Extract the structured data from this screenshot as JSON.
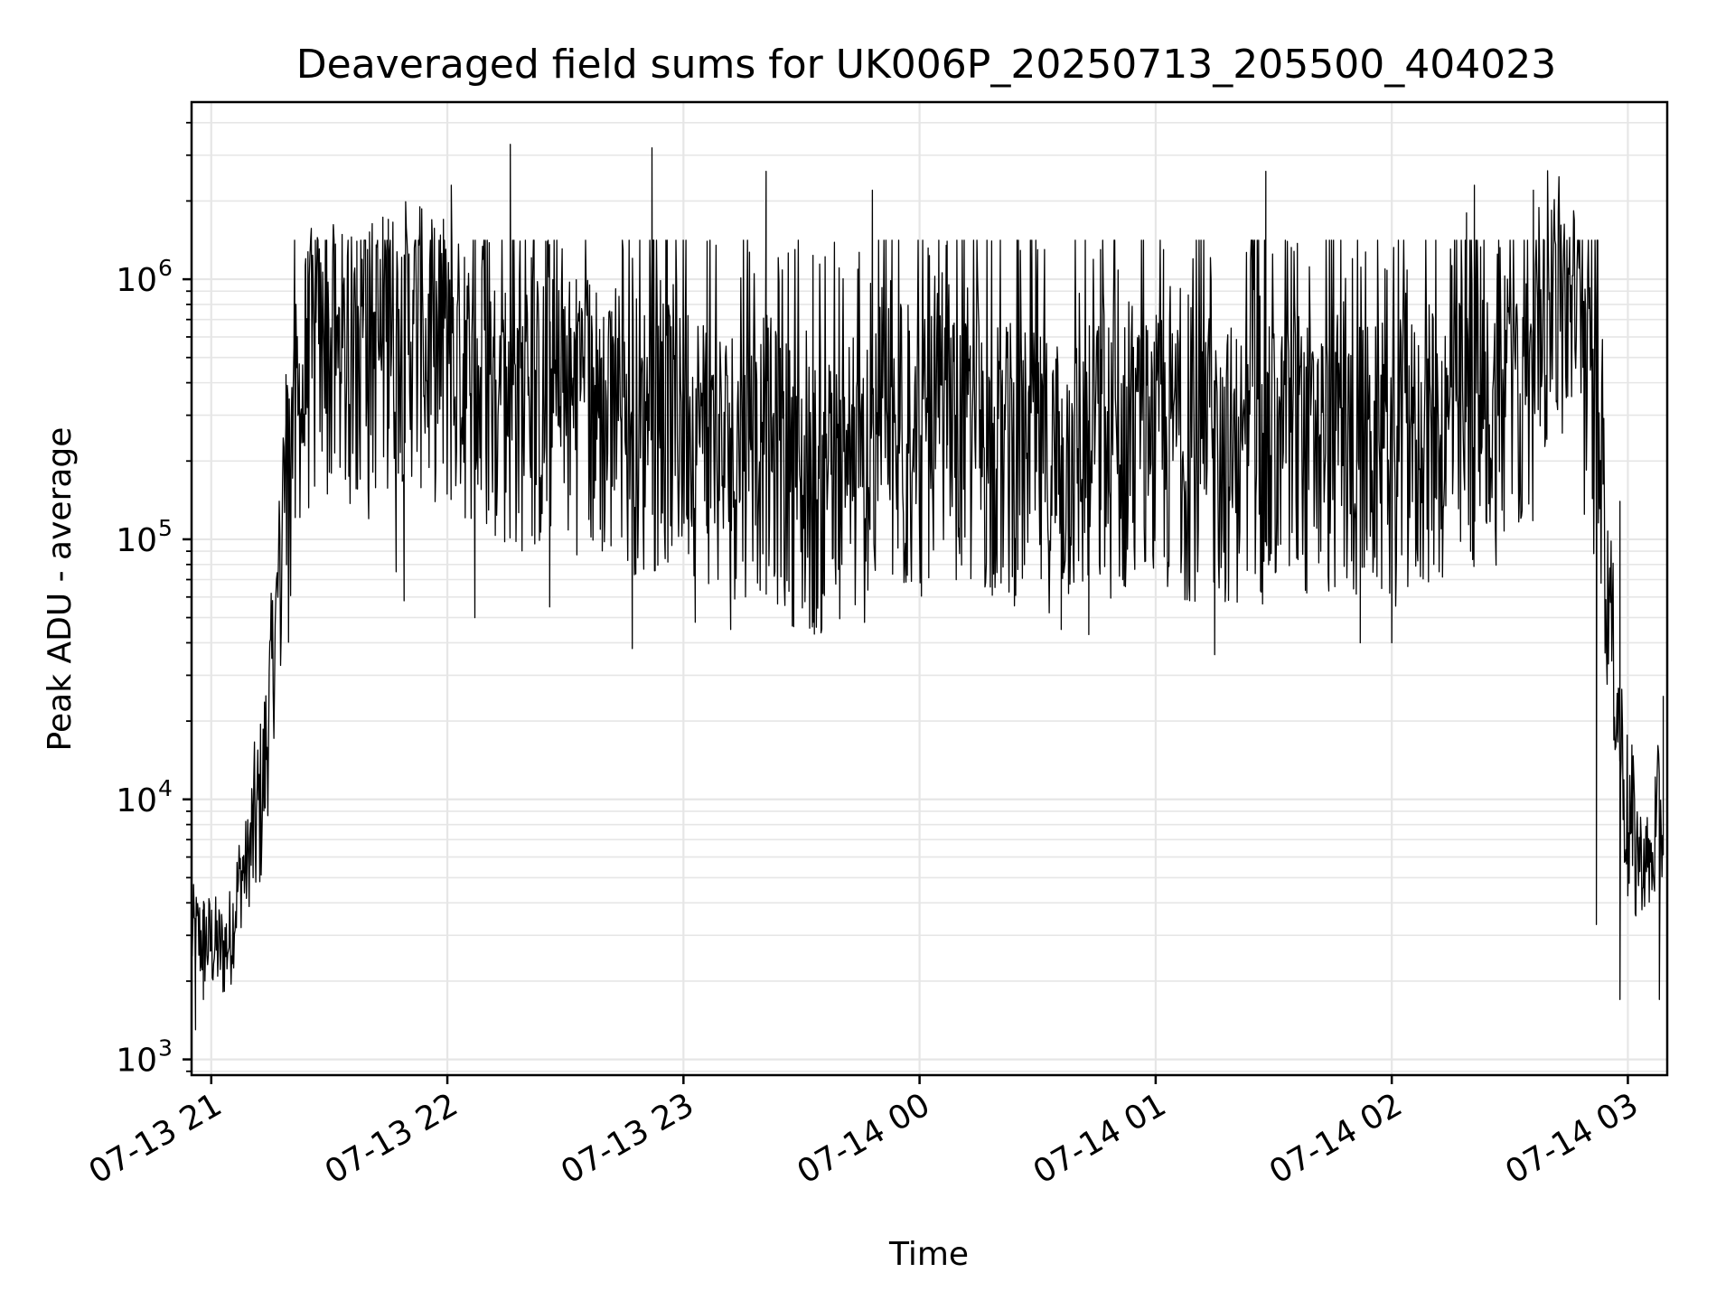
{
  "chart_data": {
    "type": "line",
    "title": "Deaveraged field sums for UK006P_20250713_205500_404023",
    "xlabel": "Time",
    "ylabel": "Peak ADU - average",
    "yscale": "log",
    "grid": true,
    "x_tick_labels": [
      "07-13 21",
      "07-13 22",
      "07-13 23",
      "07-14 00",
      "07-14 01",
      "07-14 02",
      "07-14 03"
    ],
    "x_ticks": [
      "2025-07-13 21:00",
      "2025-07-13 22:00",
      "2025-07-13 23:00",
      "2025-07-14 00:00",
      "2025-07-14 01:00",
      "2025-07-14 02:00",
      "2025-07-14 03:00"
    ],
    "xlim": [
      "2025-07-13 20:55",
      "2025-07-14 03:10"
    ],
    "y_tick_labels": [
      {
        "base": "10",
        "exp": "3"
      },
      {
        "base": "10",
        "exp": "4"
      },
      {
        "base": "10",
        "exp": "5"
      },
      {
        "base": "10",
        "exp": "6"
      }
    ],
    "y_ticks": [
      1000,
      10000,
      100000,
      1000000
    ],
    "ylim": [
      870,
      4800000
    ],
    "line_color": "#000000",
    "series": [
      {
        "x": [
          "2025-07-13 20:55",
          "2025-07-13 21:00",
          "2025-07-13 21:03",
          "2025-07-13 21:05",
          "2025-07-13 21:07",
          "2025-07-13 21:09",
          "2025-07-13 21:11",
          "2025-07-13 21:13",
          "2025-07-13 21:15",
          "2025-07-13 21:18",
          "2025-07-13 21:20",
          "2025-07-13 21:22",
          "2025-07-13 21:25",
          "2025-07-13 21:30",
          "2025-07-13 21:35",
          "2025-07-13 21:40",
          "2025-07-13 21:45",
          "2025-07-13 21:50",
          "2025-07-13 21:55",
          "2025-07-13 22:00",
          "2025-07-13 22:10",
          "2025-07-13 22:20",
          "2025-07-13 22:30",
          "2025-07-13 22:40",
          "2025-07-13 22:50",
          "2025-07-13 23:00",
          "2025-07-13 23:10",
          "2025-07-13 23:20",
          "2025-07-13 23:30",
          "2025-07-13 23:40",
          "2025-07-13 23:50",
          "2025-07-14 00:00",
          "2025-07-14 00:15",
          "2025-07-14 00:30",
          "2025-07-14 00:45",
          "2025-07-14 01:00",
          "2025-07-14 01:15",
          "2025-07-14 01:30",
          "2025-07-14 01:45",
          "2025-07-14 02:00",
          "2025-07-14 02:10",
          "2025-07-14 02:20",
          "2025-07-14 02:30",
          "2025-07-14 02:35",
          "2025-07-14 02:40",
          "2025-07-14 02:45",
          "2025-07-14 02:50",
          "2025-07-14 02:53",
          "2025-07-14 02:56",
          "2025-07-14 03:00",
          "2025-07-14 03:03",
          "2025-07-14 03:06",
          "2025-07-14 03:09"
        ],
        "y": [
          3000,
          2800,
          2600,
          3000,
          4800,
          5500,
          7500,
          10500,
          25000,
          100000,
          150000,
          280000,
          450000,
          480000,
          420000,
          500000,
          550000,
          600000,
          500000,
          450000,
          350000,
          300000,
          320000,
          280000,
          250000,
          280000,
          200000,
          220000,
          150000,
          140000,
          180000,
          200000,
          220000,
          180000,
          200000,
          210000,
          200000,
          190000,
          210000,
          190000,
          230000,
          250000,
          300000,
          350000,
          900000,
          700000,
          350000,
          250000,
          40000,
          8000,
          6000,
          5500,
          9000
        ],
        "spikes": [
          [
            "2025-07-13 21:08",
            6000
          ],
          [
            "2025-07-13 21:19",
            430000
          ],
          [
            "2025-07-13 21:24",
            1200000
          ],
          [
            "2025-07-13 21:31",
            1600000
          ],
          [
            "2025-07-13 21:37",
            1400000
          ],
          [
            "2025-07-13 21:45",
            1700000
          ],
          [
            "2025-07-13 21:53",
            1900000
          ],
          [
            "2025-07-13 21:59",
            1700000
          ],
          [
            "2025-07-13 22:01",
            2300000
          ],
          [
            "2025-07-13 22:16",
            3300000
          ],
          [
            "2025-07-13 22:25",
            1400000
          ],
          [
            "2025-07-13 22:52",
            3200000
          ],
          [
            "2025-07-13 23:06",
            1400000
          ],
          [
            "2025-07-13 23:21",
            2600000
          ],
          [
            "2025-07-13 23:48",
            2200000
          ],
          [
            "2025-07-14 00:07",
            1400000
          ],
          [
            "2025-07-14 00:30",
            1300000
          ],
          [
            "2025-07-14 00:46",
            1300000
          ],
          [
            "2025-07-14 01:02",
            1300000
          ],
          [
            "2025-07-14 01:28",
            2600000
          ],
          [
            "2025-07-14 01:50",
            1200000
          ],
          [
            "2025-07-14 02:19",
            1800000
          ],
          [
            "2025-07-14 02:21",
            2300000
          ],
          [
            "2025-07-14 02:36",
            2200000
          ],
          [
            "2025-07-14 02:58",
            140000
          ],
          [
            "2025-07-14 03:09",
            25000
          ]
        ],
        "dips": [
          [
            "2025-07-13 20:56",
            1300
          ],
          [
            "2025-07-13 20:58",
            1700
          ],
          [
            "2025-07-13 21:40",
            120000
          ],
          [
            "2025-07-13 21:47",
            75000
          ],
          [
            "2025-07-13 21:49",
            58000
          ],
          [
            "2025-07-13 22:07",
            50000
          ],
          [
            "2025-07-13 22:26",
            55000
          ],
          [
            "2025-07-13 22:47",
            38000
          ],
          [
            "2025-07-13 23:03",
            48000
          ],
          [
            "2025-07-13 23:12",
            45000
          ],
          [
            "2025-07-13 23:33",
            48000
          ],
          [
            "2025-07-14 00:36",
            45000
          ],
          [
            "2025-07-14 00:43",
            43000
          ],
          [
            "2025-07-14 01:15",
            36000
          ],
          [
            "2025-07-14 01:52",
            40000
          ],
          [
            "2025-07-14 02:00",
            40000
          ],
          [
            "2025-07-14 02:52",
            3300
          ],
          [
            "2025-07-14 02:58",
            1700
          ],
          [
            "2025-07-14 03:08",
            1700
          ]
        ]
      }
    ]
  }
}
